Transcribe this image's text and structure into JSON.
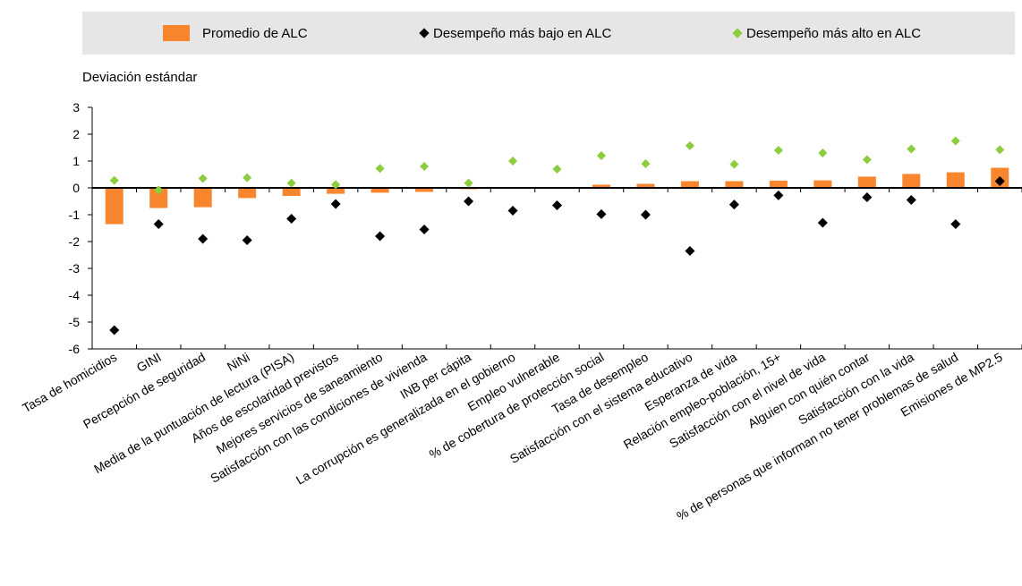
{
  "legend": {
    "avg_label": "Promedio de ALC",
    "low_label": "Desempeño más bajo en ALC",
    "high_label": "Desempeño más alto en ALC"
  },
  "colors": {
    "avg": "#f7862e",
    "low": "#000000",
    "high": "#8ccc3f",
    "legend_bg": "#e6e6e6"
  },
  "chart_data": {
    "type": "bar",
    "title": "",
    "ylabel": "Deviación estándar",
    "xlabel": "",
    "ylim": [
      -6,
      3
    ],
    "yticks": [
      3,
      2,
      1,
      0,
      -1,
      -2,
      -3,
      -4,
      -5,
      -6
    ],
    "grid": false,
    "legend_position": "top",
    "categories": [
      "Tasa de homicidios",
      "GINI",
      "Percepción de seguridad",
      "NiNi",
      "Media de la puntuación de lectura (PISA)",
      "Años de escolaridad previstos",
      "Mejores servicios de saneamiento",
      "Satisfacción con las condiciones de vivienda",
      "INB per cápita",
      "La corrupción es generalizada en el gobierno",
      "Empleo vulnerable",
      "% de cobertura de protección social",
      "Tasa de desempleo",
      "Satisfacción con el sistema educativo",
      "Esperanza de vida",
      "Relación empleo-población, 15+",
      "Satisfacción con el nivel de vida",
      "Alguien con quién contar",
      "Satisfacción con la vida",
      "% de personas que informan no tener problemas de salud",
      "Emisiones de MP2.5"
    ],
    "series": [
      {
        "name": "Promedio de ALC",
        "kind": "bar",
        "values": [
          -1.35,
          -0.75,
          -0.72,
          -0.38,
          -0.3,
          -0.22,
          -0.18,
          -0.15,
          -0.05,
          -0.02,
          0.0,
          0.12,
          0.15,
          0.25,
          0.25,
          0.27,
          0.28,
          0.42,
          0.52,
          0.58,
          0.75
        ]
      },
      {
        "name": "Desempeño más bajo en ALC",
        "kind": "marker",
        "values": [
          -5.3,
          -1.35,
          -1.9,
          -1.95,
          -1.15,
          -0.6,
          -1.8,
          -1.55,
          -0.5,
          -0.85,
          -0.65,
          -0.98,
          -1.0,
          -2.35,
          -0.62,
          -0.28,
          -1.3,
          -0.35,
          -0.45,
          -1.35,
          0.25
        ]
      },
      {
        "name": "Desempeño más alto en ALC",
        "kind": "marker",
        "values": [
          0.28,
          -0.08,
          0.35,
          0.38,
          0.18,
          0.12,
          0.72,
          0.8,
          0.18,
          1.0,
          0.7,
          1.2,
          0.9,
          1.57,
          0.88,
          1.4,
          1.3,
          1.05,
          1.45,
          1.75,
          1.42
        ]
      }
    ]
  }
}
